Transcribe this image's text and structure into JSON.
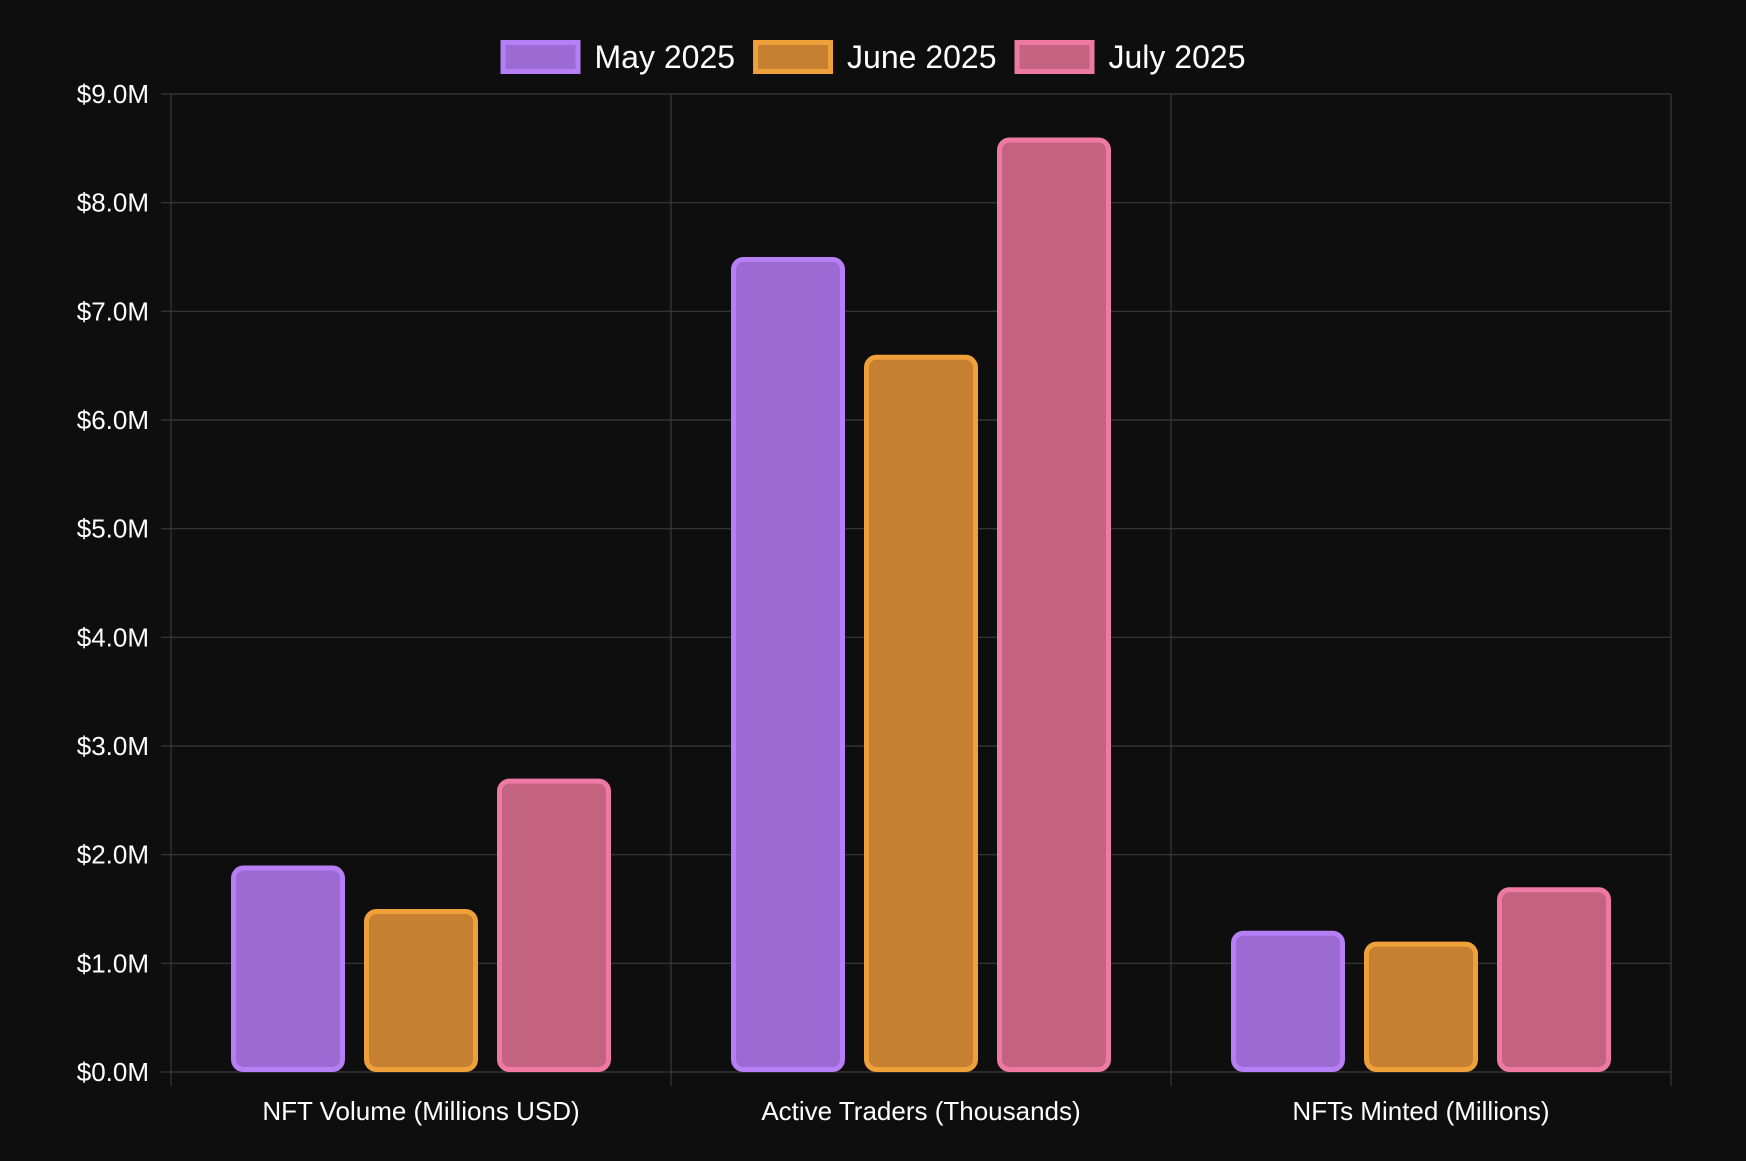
{
  "chart_data": {
    "type": "bar",
    "categories": [
      "NFT Volume (Millions USD)",
      "Active Traders (Thousands)",
      "NFTs Minted (Millions)"
    ],
    "series": [
      {
        "name": "May 2025",
        "values": [
          1.9,
          7.5,
          1.3
        ],
        "fill": "#9b6ad2",
        "stroke": "#b77ff5"
      },
      {
        "name": "June 2025",
        "values": [
          1.5,
          6.6,
          1.2
        ],
        "fill": "#c58032",
        "stroke": "#f0a03a"
      },
      {
        "name": "July 2025",
        "values": [
          2.7,
          8.6,
          1.7
        ],
        "fill": "#c46380",
        "stroke": "#ee7aa3"
      }
    ],
    "yticks": [
      "$0.0M",
      "$1.0M",
      "$2.0M",
      "$3.0M",
      "$4.0M",
      "$5.0M",
      "$6.0M",
      "$7.0M",
      "$8.0M",
      "$9.0M"
    ],
    "ylim": [
      0,
      9
    ],
    "legend_position": "top-center",
    "grid": true,
    "background": "#0e0e0e",
    "gridColor": "#3a3a3a",
    "textColor": "#ffffff"
  }
}
